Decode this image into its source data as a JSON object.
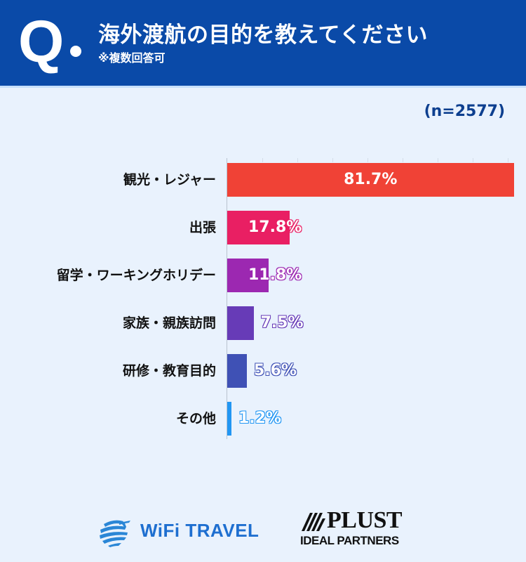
{
  "header": {
    "q_mark": "Q",
    "title": "海外渡航の目的を教えてください",
    "subtitle": "※複数回答可"
  },
  "sample_size_label": "(n=2577)",
  "chart_data": {
    "type": "bar",
    "orientation": "horizontal",
    "title": "海外渡航の目的を教えてください",
    "subtitle": "※複数回答可",
    "sample_size": 2577,
    "categories": [
      "観光・レジャー",
      "出張",
      "留学・ワーキングホリデー",
      "家族・親族訪問",
      "研修・教育目的",
      "その他"
    ],
    "values": [
      81.7,
      17.8,
      11.8,
      7.5,
      5.6,
      1.2
    ],
    "value_labels": [
      "81.7%",
      "17.8%",
      "11.8%",
      "7.5%",
      "5.6%",
      "1.2%"
    ],
    "colors": [
      "#f04236",
      "#e91f63",
      "#9c28b1",
      "#673bb7",
      "#3f51b5",
      "#2196f3"
    ],
    "unit": "%",
    "xlabel": "",
    "ylabel": "",
    "xlim": [
      0,
      100
    ],
    "grid": false,
    "legend": "none"
  },
  "footer": {
    "wifi_travel": "WiFi TRAVEL",
    "plust": "PLUST",
    "plust_sub": "IDEAL PARTNERS"
  },
  "colors": {
    "header_bg": "#0a4aa8",
    "page_bg": "#e9f2fd",
    "sample_text": "#0d3f8f"
  }
}
